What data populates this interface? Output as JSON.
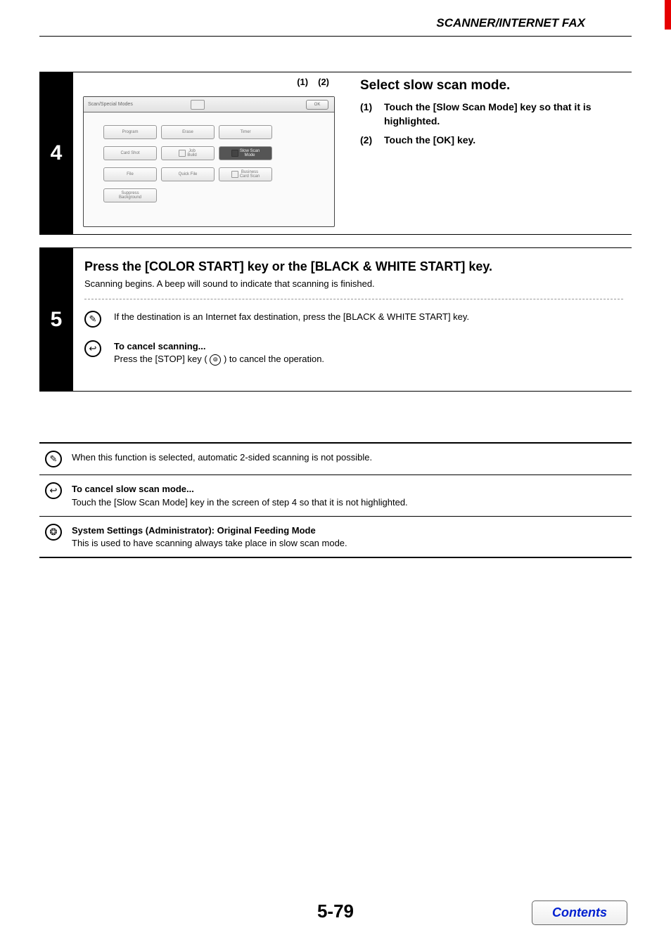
{
  "header": {
    "title": "SCANNER/INTERNET FAX"
  },
  "step4": {
    "number": "4",
    "callout1": "(1)",
    "callout2": "(2)",
    "screen": {
      "title": "Scan/Special Modes",
      "ok": "OK",
      "buttons": {
        "program": "Program",
        "erase": "Erase",
        "timer": "Timer",
        "cardshot": "Card Shot",
        "jobbuild": "Job\nBuild",
        "slowscan": "Slow Scan\nMode",
        "file": "File",
        "quickfile": "Quick File",
        "business": "Business\nCard Scan",
        "suppress": "Suppress\nBackground"
      }
    },
    "instr": {
      "title": "Select slow scan mode.",
      "i1_num": "(1)",
      "i1": "Touch the [Slow Scan Mode] key so that it is highlighted.",
      "i2_num": "(2)",
      "i2": "Touch the [OK] key."
    }
  },
  "step5": {
    "number": "5",
    "title": "Press the [COLOR START] key or the [BLACK & WHITE START] key.",
    "sub": "Scanning begins. A beep will sound to indicate that scanning is finished.",
    "note1": "If the destination is an Internet fax destination, press the [BLACK & WHITE START] key.",
    "cancel_title": "To cancel scanning...",
    "cancel_body_a": "Press the [STOP] key (",
    "cancel_body_b": ") to cancel the operation."
  },
  "info": {
    "r1": "When this function is selected, automatic 2-sided scanning is not possible.",
    "r2_title": "To cancel slow scan mode...",
    "r2": "Touch the [Slow Scan Mode] key in the screen of step 4 so that it is not highlighted.",
    "r3_title": "System Settings (Administrator): Original Feeding Mode",
    "r3": "This is used to have scanning always take place in slow scan mode."
  },
  "footer": {
    "page": "5-79",
    "contents": "Contents"
  },
  "colors": {
    "accent_red": "#e60000",
    "link_blue": "#0020d0"
  },
  "icons": {
    "pencil": "✎",
    "undo": "↩",
    "gear": "❂",
    "stop": "⊚"
  }
}
